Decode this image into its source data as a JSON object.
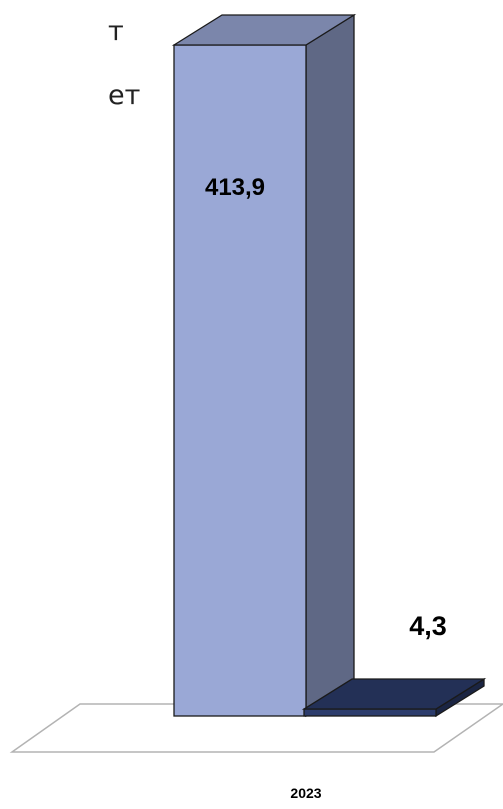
{
  "text_fragments": [
    "т",
    "ет"
  ],
  "chart_data": {
    "type": "bar",
    "categories": [
      "2023"
    ],
    "series": [
      {
        "values": [
          413.9
        ],
        "color": "#9aa8d6"
      },
      {
        "values": [
          4.3
        ],
        "color": "#2c3c6c"
      }
    ],
    "data_labels": [
      "413,9",
      "4,3"
    ],
    "title": "",
    "xlabel": "",
    "ylabel": "",
    "grid": false,
    "legend": "none",
    "style": "3d-column"
  }
}
